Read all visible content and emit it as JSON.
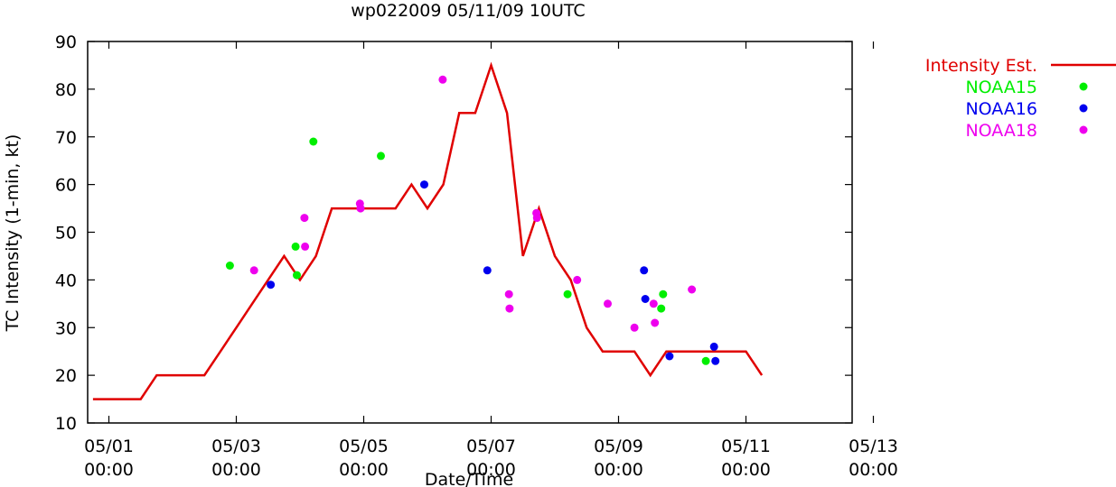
{
  "chart_data": {
    "type": "line",
    "title": "wp022009 05/11/09 10UTC",
    "xlabel": "Date/Time",
    "ylabel": "TC Intensity (1-min, kt)",
    "xlim": [
      -0.3333,
      11.6667
    ],
    "ylim": [
      10,
      90
    ],
    "grid": false,
    "legend": "outside-right",
    "x_ticks": [
      {
        "x": 0,
        "line1": "05/01",
        "line2": "00:00"
      },
      {
        "x": 2,
        "line1": "05/03",
        "line2": "00:00"
      },
      {
        "x": 4,
        "line1": "05/05",
        "line2": "00:00"
      },
      {
        "x": 6,
        "line1": "05/07",
        "line2": "00:00"
      },
      {
        "x": 8,
        "line1": "05/09",
        "line2": "00:00"
      },
      {
        "x": 10,
        "line1": "05/11",
        "line2": "00:00"
      },
      {
        "x": 12,
        "line1": "05/13",
        "line2": "00:00"
      }
    ],
    "y_ticks": [
      10,
      20,
      30,
      40,
      50,
      60,
      70,
      80,
      90
    ],
    "legend_entries": [
      {
        "label": "Intensity Est.",
        "color": "#e00000",
        "kind": "line"
      },
      {
        "label": "NOAA15",
        "color": "#00ee00",
        "kind": "point"
      },
      {
        "label": "NOAA16",
        "color": "#0000ee",
        "kind": "point"
      },
      {
        "label": "NOAA18",
        "color": "#ee00ee",
        "kind": "point"
      }
    ],
    "intensity": {
      "color": "#e00000",
      "x": [
        -0.25,
        0.5,
        0.75,
        1.25,
        1.5,
        1.75,
        2.0,
        2.25,
        2.5,
        2.75,
        3.0,
        3.25,
        3.5,
        3.75,
        4.0,
        4.25,
        4.5,
        4.75,
        5.0,
        5.25,
        5.5,
        5.75,
        6.0,
        6.25,
        6.5,
        6.75,
        7.0,
        7.25,
        7.5,
        7.75,
        8.0,
        8.25,
        8.5,
        8.75,
        9.0,
        9.25,
        9.5,
        9.75,
        10.0,
        10.25
      ],
      "y": [
        15,
        15,
        20,
        20,
        20,
        25,
        30,
        35,
        40,
        45,
        40,
        45,
        55,
        55,
        55,
        55,
        55,
        60,
        55,
        60,
        75,
        75,
        85,
        75,
        45,
        55,
        45,
        40,
        30,
        25,
        25,
        25,
        20,
        25,
        25,
        25,
        25,
        25,
        25,
        20
      ]
    },
    "series": [
      {
        "name": "NOAA15",
        "color": "#00ee00",
        "x": [
          1.9,
          2.93,
          2.95,
          3.21,
          4.27,
          7.2,
          8.67,
          8.7,
          9.37
        ],
        "y": [
          43,
          47,
          41,
          69,
          66,
          37,
          34,
          37,
          23
        ]
      },
      {
        "name": "NOAA16",
        "color": "#0000ee",
        "x": [
          2.54,
          4.95,
          5.94,
          8.4,
          8.42,
          8.8,
          9.5,
          9.52
        ],
        "y": [
          39,
          60,
          42,
          42,
          36,
          24,
          26,
          23
        ]
      },
      {
        "name": "NOAA18",
        "color": "#ee00ee",
        "x": [
          2.28,
          3.07,
          3.08,
          3.94,
          3.95,
          5.24,
          6.28,
          6.29,
          6.71,
          6.72,
          7.35,
          7.83,
          8.25,
          8.55,
          8.57,
          9.15
        ],
        "y": [
          42,
          53,
          47,
          56,
          55,
          82,
          37,
          34,
          54,
          53,
          40,
          35,
          30,
          35,
          31,
          38
        ]
      }
    ]
  }
}
